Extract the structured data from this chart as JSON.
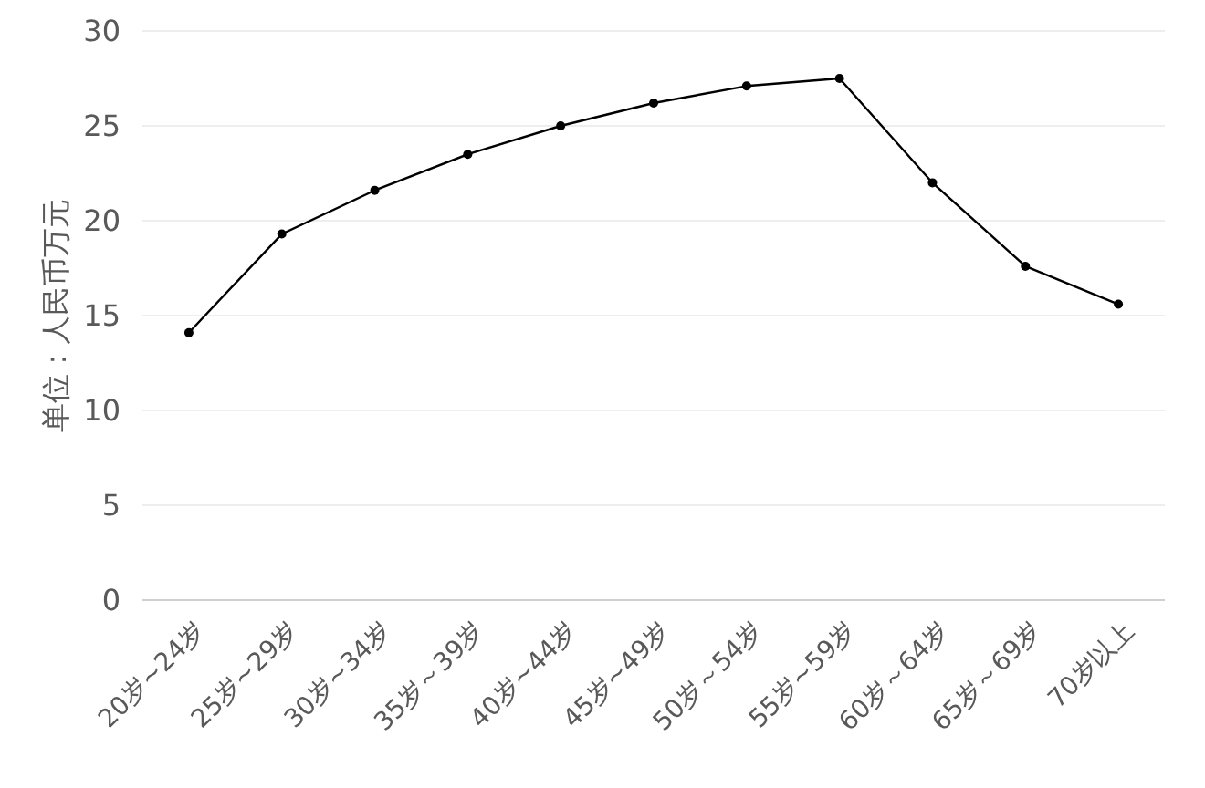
{
  "chart_data": {
    "type": "line",
    "ylabel": "单位：人民币万元",
    "categories": [
      "20岁~24岁",
      "25岁~29岁",
      "30岁~34岁",
      "35岁～39岁",
      "40岁~44岁",
      "45岁~49岁",
      "50岁～54岁",
      "55岁~59岁",
      "60岁～64岁",
      "65岁～69岁",
      "70岁以上"
    ],
    "series": [
      {
        "color": "#000000",
        "values": [
          14.1,
          19.3,
          21.6,
          23.5,
          25.0,
          26.2,
          27.1,
          27.5,
          22.0,
          17.6,
          15.6
        ]
      }
    ],
    "ylim": [
      0,
      30
    ],
    "yticks": [
      0,
      5,
      10,
      15,
      20,
      25,
      30
    ],
    "grid": "y",
    "marker": "circle",
    "line_style": "solid"
  }
}
